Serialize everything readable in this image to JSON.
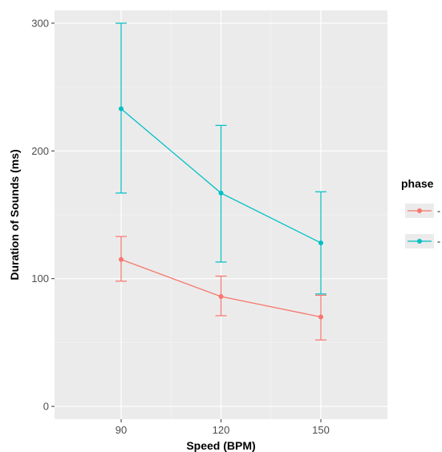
{
  "chart_data": {
    "type": "line",
    "xlabel": "Speed (BPM)",
    "ylabel": "Duration of Sounds (ms)",
    "x": [
      90,
      120,
      150
    ],
    "xlim": [
      70,
      170
    ],
    "ylim": [
      -10,
      310
    ],
    "yticks": [
      0,
      100,
      200,
      300
    ],
    "grid": true,
    "legend": {
      "title": "phase",
      "position": "right",
      "labels": [
        "-",
        "-"
      ]
    },
    "series": [
      {
        "color": "#F8766D",
        "values": [
          115,
          86,
          70
        ],
        "error_low": [
          98,
          71,
          52
        ],
        "error_high": [
          133,
          102,
          87
        ]
      },
      {
        "color": "#00BFC4",
        "values": [
          233,
          167,
          128
        ],
        "error_low": [
          167,
          113,
          88
        ],
        "error_high": [
          300,
          220,
          168
        ]
      }
    ]
  }
}
